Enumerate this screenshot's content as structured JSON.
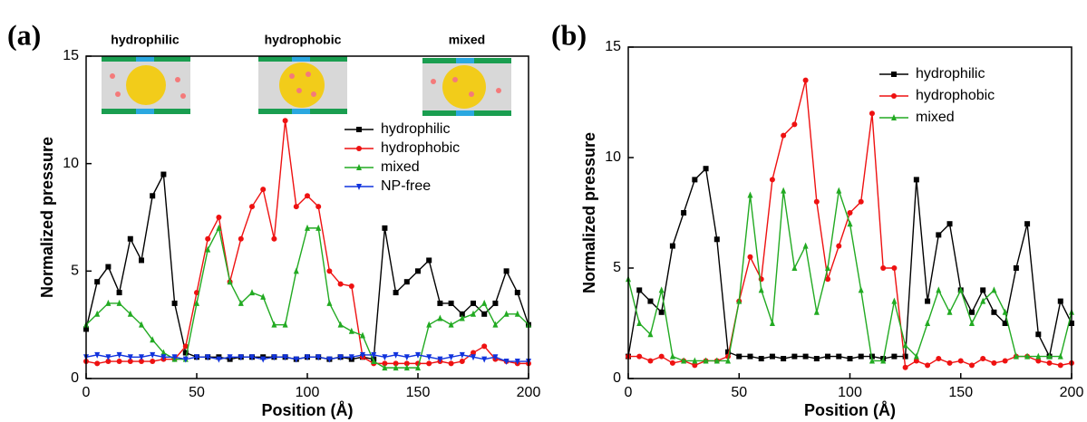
{
  "chart_data": [
    {
      "type": "line",
      "label": "(a)",
      "insets": [
        "hydrophilic",
        "hydrophobic",
        "mixed"
      ],
      "xlabel": "Position (Å)",
      "ylabel": "Normalized pressure",
      "xlim": [
        0,
        200
      ],
      "xticks": [
        0,
        50,
        100,
        150,
        200
      ],
      "ylim": [
        0,
        15
      ],
      "yticks": [
        0,
        5,
        10,
        15
      ],
      "x": [
        0,
        5,
        10,
        15,
        20,
        25,
        30,
        35,
        40,
        45,
        50,
        55,
        60,
        65,
        70,
        75,
        80,
        85,
        90,
        95,
        100,
        105,
        110,
        115,
        120,
        125,
        130,
        135,
        140,
        145,
        150,
        155,
        160,
        165,
        170,
        175,
        180,
        185,
        190,
        195,
        200
      ],
      "series": [
        {
          "name": "hydrophilic",
          "color": "#000000",
          "marker": "square",
          "values": [
            2.3,
            4.5,
            5.2,
            4,
            6.5,
            5.5,
            8.5,
            9.5,
            3.5,
            1.2,
            1,
            1,
            1,
            0.9,
            1,
            1,
            1,
            1,
            1,
            0.9,
            1,
            1,
            0.9,
            1,
            0.9,
            1,
            0.9,
            7,
            4,
            4.5,
            5,
            5.5,
            3.5,
            3.5,
            3,
            3.5,
            3,
            3.5,
            5,
            4,
            2.5
          ]
        },
        {
          "name": "hydrophobic",
          "color": "#ee1111",
          "marker": "circle",
          "values": [
            0.8,
            0.7,
            0.8,
            0.8,
            0.8,
            0.8,
            0.8,
            0.9,
            0.9,
            1.5,
            4,
            6.5,
            7.5,
            4.5,
            6.5,
            8,
            8.8,
            6.5,
            12,
            8,
            8.5,
            8,
            5,
            4.4,
            4.3,
            1,
            0.7,
            0.7,
            0.7,
            0.7,
            0.7,
            0.7,
            0.8,
            0.7,
            0.8,
            1.2,
            1.5,
            0.9,
            0.8,
            0.7,
            0.7
          ]
        },
        {
          "name": "mixed",
          "color": "#22aa22",
          "marker": "triangle",
          "values": [
            2.5,
            3,
            3.5,
            3.5,
            3,
            2.5,
            1.8,
            1.2,
            0.9,
            0.9,
            3.5,
            6,
            7,
            4.5,
            3.5,
            4,
            3.8,
            2.5,
            2.5,
            5,
            7,
            7,
            3.5,
            2.5,
            2.2,
            2,
            0.8,
            0.5,
            0.5,
            0.5,
            0.5,
            2.5,
            2.8,
            2.5,
            2.8,
            3,
            3.5,
            2.5,
            3,
            3,
            2.5
          ]
        },
        {
          "name": "NP-free",
          "color": "#1133dd",
          "marker": "down-triangle",
          "values": [
            1,
            1.1,
            1,
            1.1,
            1,
            1,
            1.1,
            1,
            1,
            0.9,
            1,
            1,
            0.9,
            1,
            1,
            1,
            0.9,
            1,
            1,
            0.9,
            1,
            1,
            0.9,
            1,
            1,
            1.1,
            1.1,
            1,
            1.1,
            1,
            1.1,
            1,
            0.9,
            1,
            1.1,
            1,
            0.9,
            1,
            0.8,
            0.8,
            0.8
          ]
        }
      ]
    },
    {
      "type": "line",
      "label": "(b)",
      "xlabel": "Position (Å)",
      "ylabel": "Normalized pressure",
      "xlim": [
        0,
        200
      ],
      "xticks": [
        0,
        50,
        100,
        150,
        200
      ],
      "ylim": [
        0,
        15
      ],
      "yticks": [
        0,
        5,
        10,
        15
      ],
      "x": [
        0,
        5,
        10,
        15,
        20,
        25,
        30,
        35,
        40,
        45,
        50,
        55,
        60,
        65,
        70,
        75,
        80,
        85,
        90,
        95,
        100,
        105,
        110,
        115,
        120,
        125,
        130,
        135,
        140,
        145,
        150,
        155,
        160,
        165,
        170,
        175,
        180,
        185,
        190,
        195,
        200
      ],
      "series": [
        {
          "name": "hydrophilic",
          "color": "#000000",
          "marker": "square",
          "values": [
            1,
            4,
            3.5,
            3,
            6,
            7.5,
            9,
            9.5,
            6.3,
            1.2,
            1,
            1,
            0.9,
            1,
            0.9,
            1,
            1,
            0.9,
            1,
            1,
            0.9,
            1,
            1,
            0.9,
            1,
            1,
            9,
            3.5,
            6.5,
            7,
            4,
            3,
            4,
            3,
            2.5,
            5,
            7,
            2,
            1,
            3.5,
            2.5
          ]
        },
        {
          "name": "hydrophobic",
          "color": "#ee1111",
          "marker": "circle",
          "values": [
            1,
            1,
            0.8,
            1,
            0.7,
            0.8,
            0.6,
            0.8,
            0.8,
            1,
            3.5,
            5.5,
            4.5,
            9,
            11,
            11.5,
            13.5,
            8,
            4.5,
            6,
            7.5,
            8,
            12,
            5,
            5,
            0.5,
            0.8,
            0.6,
            0.9,
            0.7,
            0.8,
            0.6,
            0.9,
            0.7,
            0.8,
            1,
            1,
            0.8,
            0.7,
            0.6,
            0.7
          ]
        },
        {
          "name": "mixed",
          "color": "#22aa22",
          "marker": "triangle",
          "values": [
            4.5,
            2.5,
            2,
            4,
            1,
            0.8,
            0.8,
            0.8,
            0.8,
            0.8,
            3.5,
            8.3,
            4,
            2.5,
            8.5,
            5,
            6,
            3,
            5,
            8.5,
            7,
            4,
            0.8,
            0.8,
            3.5,
            1.5,
            1,
            2.5,
            4,
            3,
            4,
            2.5,
            3.5,
            4,
            3,
            1,
            1,
            1,
            1,
            1,
            3
          ]
        }
      ]
    }
  ]
}
